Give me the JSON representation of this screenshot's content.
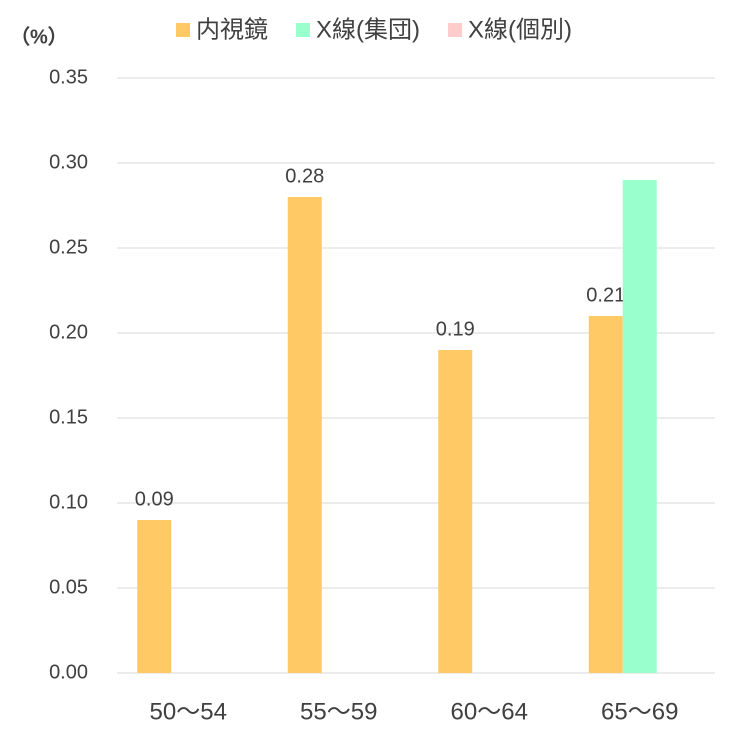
{
  "chart_data": {
    "type": "bar",
    "y_label": "（%）",
    "categories": [
      "50〜54",
      "55〜59",
      "60〜64",
      "65〜69"
    ],
    "series": [
      {
        "name": "内視鏡",
        "color": "#ffca65",
        "values": [
          0.09,
          0.28,
          0.19,
          0.21
        ],
        "labels": true
      },
      {
        "name": "X線(集団)",
        "color": "#99ffcc",
        "values": [
          null,
          null,
          null,
          0.29
        ]
      },
      {
        "name": "X線(個別)",
        "color": "#ffcccc",
        "values": [
          null,
          null,
          null,
          null
        ]
      }
    ],
    "ylim": [
      0,
      0.35
    ],
    "yticks": [
      {
        "value": 0,
        "label": "0.00"
      },
      0.05,
      {
        "value": 0.1,
        "label": "0.10"
      },
      0.15,
      {
        "value": 0.2,
        "label": "0.20"
      },
      0.25,
      {
        "value": 0.3,
        "label": "0.30"
      },
      0.35
    ],
    "grid": true,
    "legend": "top"
  }
}
